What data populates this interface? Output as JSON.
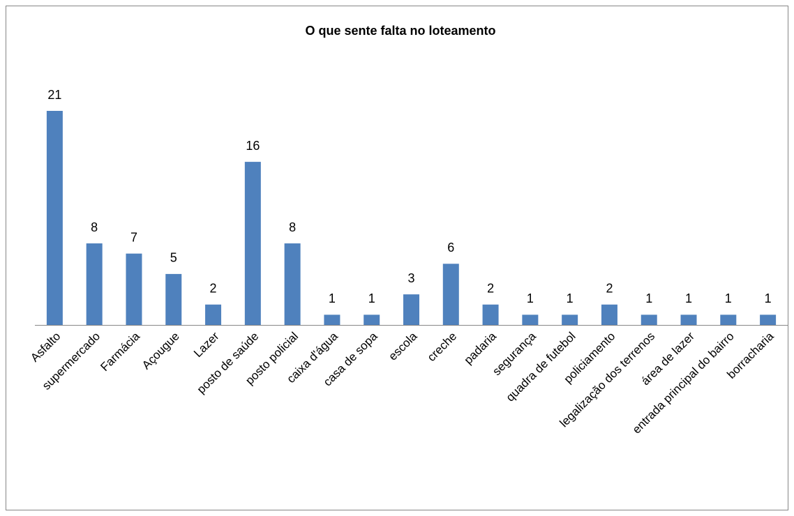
{
  "chart_data": {
    "type": "bar",
    "title": "O que sente falta no loteamento",
    "categories": [
      "Asfalto",
      "supermercado",
      "Farmácia",
      "Açougue",
      "Lazer",
      "posto de saúde",
      "posto policial",
      "caixa d'água",
      "casa de sopa",
      "escola",
      "creche",
      "padaria",
      "segurança",
      "quadra de futebol",
      "policiamento",
      "legalização dos terrenos",
      "área de lazer",
      "entrada principal do bairro",
      "borracharia"
    ],
    "values": [
      21,
      8,
      7,
      5,
      2,
      16,
      8,
      1,
      1,
      3,
      6,
      2,
      1,
      1,
      2,
      1,
      1,
      1,
      1
    ],
    "color": "#4f81bd"
  }
}
